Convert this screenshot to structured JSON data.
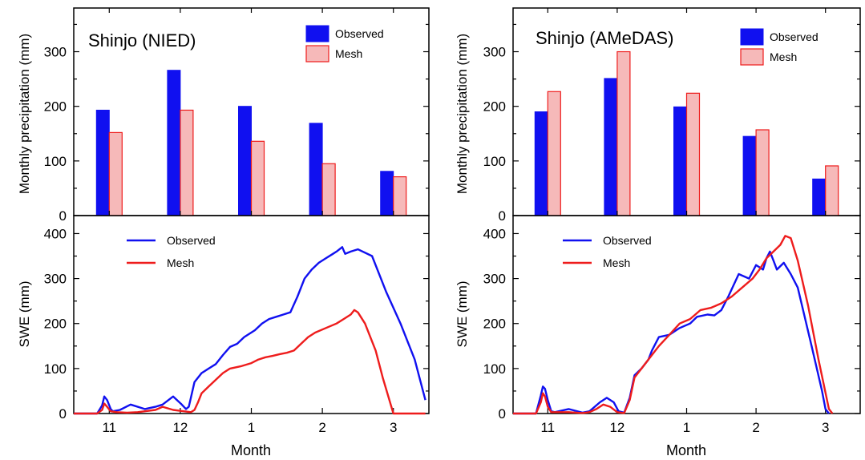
{
  "colors": {
    "observed": "#1010f0",
    "mesh_stroke": "#ee1c1c",
    "mesh_fill": "#f6b9b9"
  },
  "chart_data": [
    {
      "type": "bar",
      "title": "Shinjo (NIED)",
      "ylabel": "Monthly precipitation (mm)",
      "ylim": [
        0,
        380
      ],
      "yticks": [
        0,
        100,
        200,
        300
      ],
      "categories": [
        "11",
        "12",
        "1",
        "2",
        "3"
      ],
      "legend_position": "top-right",
      "series": [
        {
          "name": "Observed",
          "values": [
            193,
            266,
            200,
            169,
            81
          ]
        },
        {
          "name": "Mesh",
          "values": [
            152,
            193,
            136,
            95,
            71
          ]
        }
      ]
    },
    {
      "type": "bar",
      "title": "Shinjo (AMeDAS)",
      "ylabel": "Monthly precipitation (mm)",
      "ylim": [
        0,
        380
      ],
      "yticks": [
        0,
        100,
        200,
        300
      ],
      "categories": [
        "11",
        "12",
        "1",
        "2",
        "3"
      ],
      "legend_position": "top-right",
      "series": [
        {
          "name": "Observed",
          "values": [
            190,
            251,
            199,
            145,
            67
          ]
        },
        {
          "name": "Mesh",
          "values": [
            227,
            300,
            224,
            157,
            91
          ]
        }
      ]
    },
    {
      "type": "line",
      "xlabel": "Month",
      "ylabel": "SWE (mm)",
      "ylim": [
        0,
        440
      ],
      "yticks": [
        0,
        100,
        200,
        300,
        400
      ],
      "xtick_labels": [
        "11",
        "12",
        "1",
        "2",
        "3"
      ],
      "xtick_positions": [
        0.5,
        1.5,
        2.5,
        3.5,
        4.5
      ],
      "xlim": [
        0,
        5
      ],
      "legend_position": "top-left",
      "series": [
        {
          "name": "Observed",
          "x": [
            0,
            0.33,
            0.4,
            0.43,
            0.47,
            0.52,
            0.55,
            0.65,
            0.8,
            1.0,
            1.15,
            1.25,
            1.4,
            1.52,
            1.58,
            1.62,
            1.7,
            1.8,
            1.9,
            2.0,
            2.1,
            2.2,
            2.3,
            2.4,
            2.55,
            2.65,
            2.75,
            2.85,
            2.95,
            3.05,
            3.15,
            3.25,
            3.35,
            3.45,
            3.55,
            3.65,
            3.7,
            3.78,
            3.82,
            3.9,
            4.0,
            4.2,
            4.4,
            4.6,
            4.8,
            4.95
          ],
          "y": [
            0,
            0,
            18,
            38,
            30,
            10,
            5,
            8,
            20,
            10,
            15,
            20,
            38,
            20,
            10,
            15,
            70,
            90,
            100,
            110,
            130,
            148,
            155,
            170,
            185,
            200,
            210,
            215,
            220,
            225,
            260,
            300,
            320,
            335,
            345,
            355,
            360,
            370,
            355,
            360,
            365,
            350,
            270,
            200,
            120,
            30
          ]
        },
        {
          "name": "Mesh",
          "x": [
            0,
            0.33,
            0.4,
            0.43,
            0.47,
            0.52,
            0.6,
            0.75,
            0.9,
            1.0,
            1.15,
            1.25,
            1.4,
            1.55,
            1.65,
            1.7,
            1.75,
            1.8,
            1.9,
            2.0,
            2.1,
            2.2,
            2.35,
            2.5,
            2.6,
            2.7,
            2.8,
            2.9,
            3.0,
            3.1,
            3.2,
            3.3,
            3.4,
            3.55,
            3.7,
            3.8,
            3.9,
            3.95,
            4.0,
            4.1,
            4.25,
            4.35,
            4.5,
            4.95
          ],
          "y": [
            0,
            0,
            8,
            22,
            15,
            5,
            3,
            2,
            3,
            5,
            8,
            15,
            8,
            5,
            3,
            8,
            25,
            45,
            60,
            75,
            90,
            100,
            105,
            112,
            120,
            125,
            128,
            132,
            135,
            140,
            155,
            170,
            180,
            190,
            200,
            210,
            220,
            230,
            225,
            200,
            140,
            80,
            0,
            0
          ]
        }
      ]
    },
    {
      "type": "line",
      "xlabel": "Month",
      "ylabel": "SWE (mm)",
      "ylim": [
        0,
        440
      ],
      "yticks": [
        0,
        100,
        200,
        300,
        400
      ],
      "xtick_labels": [
        "11",
        "12",
        "1",
        "2",
        "3"
      ],
      "xtick_positions": [
        0.5,
        1.5,
        2.5,
        3.5,
        4.5
      ],
      "xlim": [
        0,
        5
      ],
      "legend_position": "top-left",
      "series": [
        {
          "name": "Observed",
          "x": [
            0,
            0.33,
            0.4,
            0.43,
            0.46,
            0.5,
            0.55,
            0.6,
            0.8,
            1.0,
            1.1,
            1.25,
            1.35,
            1.45,
            1.52,
            1.6,
            1.68,
            1.75,
            1.85,
            1.95,
            2.0,
            2.1,
            2.25,
            2.4,
            2.55,
            2.65,
            2.8,
            2.9,
            3.0,
            3.1,
            3.25,
            3.4,
            3.5,
            3.6,
            3.65,
            3.7,
            3.75,
            3.8,
            3.9,
            4.0,
            4.1,
            4.3,
            4.45,
            4.5,
            4.55
          ],
          "y": [
            0,
            0,
            40,
            60,
            55,
            30,
            5,
            3,
            10,
            2,
            5,
            25,
            35,
            25,
            5,
            2,
            35,
            85,
            100,
            120,
            140,
            170,
            175,
            190,
            200,
            215,
            220,
            218,
            230,
            260,
            310,
            300,
            330,
            320,
            345,
            360,
            340,
            320,
            335,
            310,
            280,
            150,
            50,
            10,
            0
          ]
        },
        {
          "name": "Mesh",
          "x": [
            0,
            0.33,
            0.4,
            0.43,
            0.46,
            0.5,
            0.55,
            0.8,
            1.0,
            1.1,
            1.2,
            1.3,
            1.4,
            1.5,
            1.6,
            1.68,
            1.75,
            1.85,
            2.0,
            2.1,
            2.25,
            2.4,
            2.55,
            2.7,
            2.85,
            3.0,
            3.15,
            3.3,
            3.45,
            3.55,
            3.65,
            3.75,
            3.85,
            3.92,
            4.0,
            4.1,
            4.25,
            4.4,
            4.55,
            4.6
          ],
          "y": [
            0,
            0,
            25,
            45,
            38,
            15,
            3,
            3,
            1,
            3,
            10,
            20,
            15,
            3,
            1,
            30,
            80,
            100,
            130,
            150,
            175,
            200,
            210,
            230,
            235,
            245,
            260,
            280,
            300,
            320,
            345,
            360,
            375,
            395,
            390,
            340,
            240,
            120,
            10,
            0
          ]
        }
      ]
    }
  ]
}
